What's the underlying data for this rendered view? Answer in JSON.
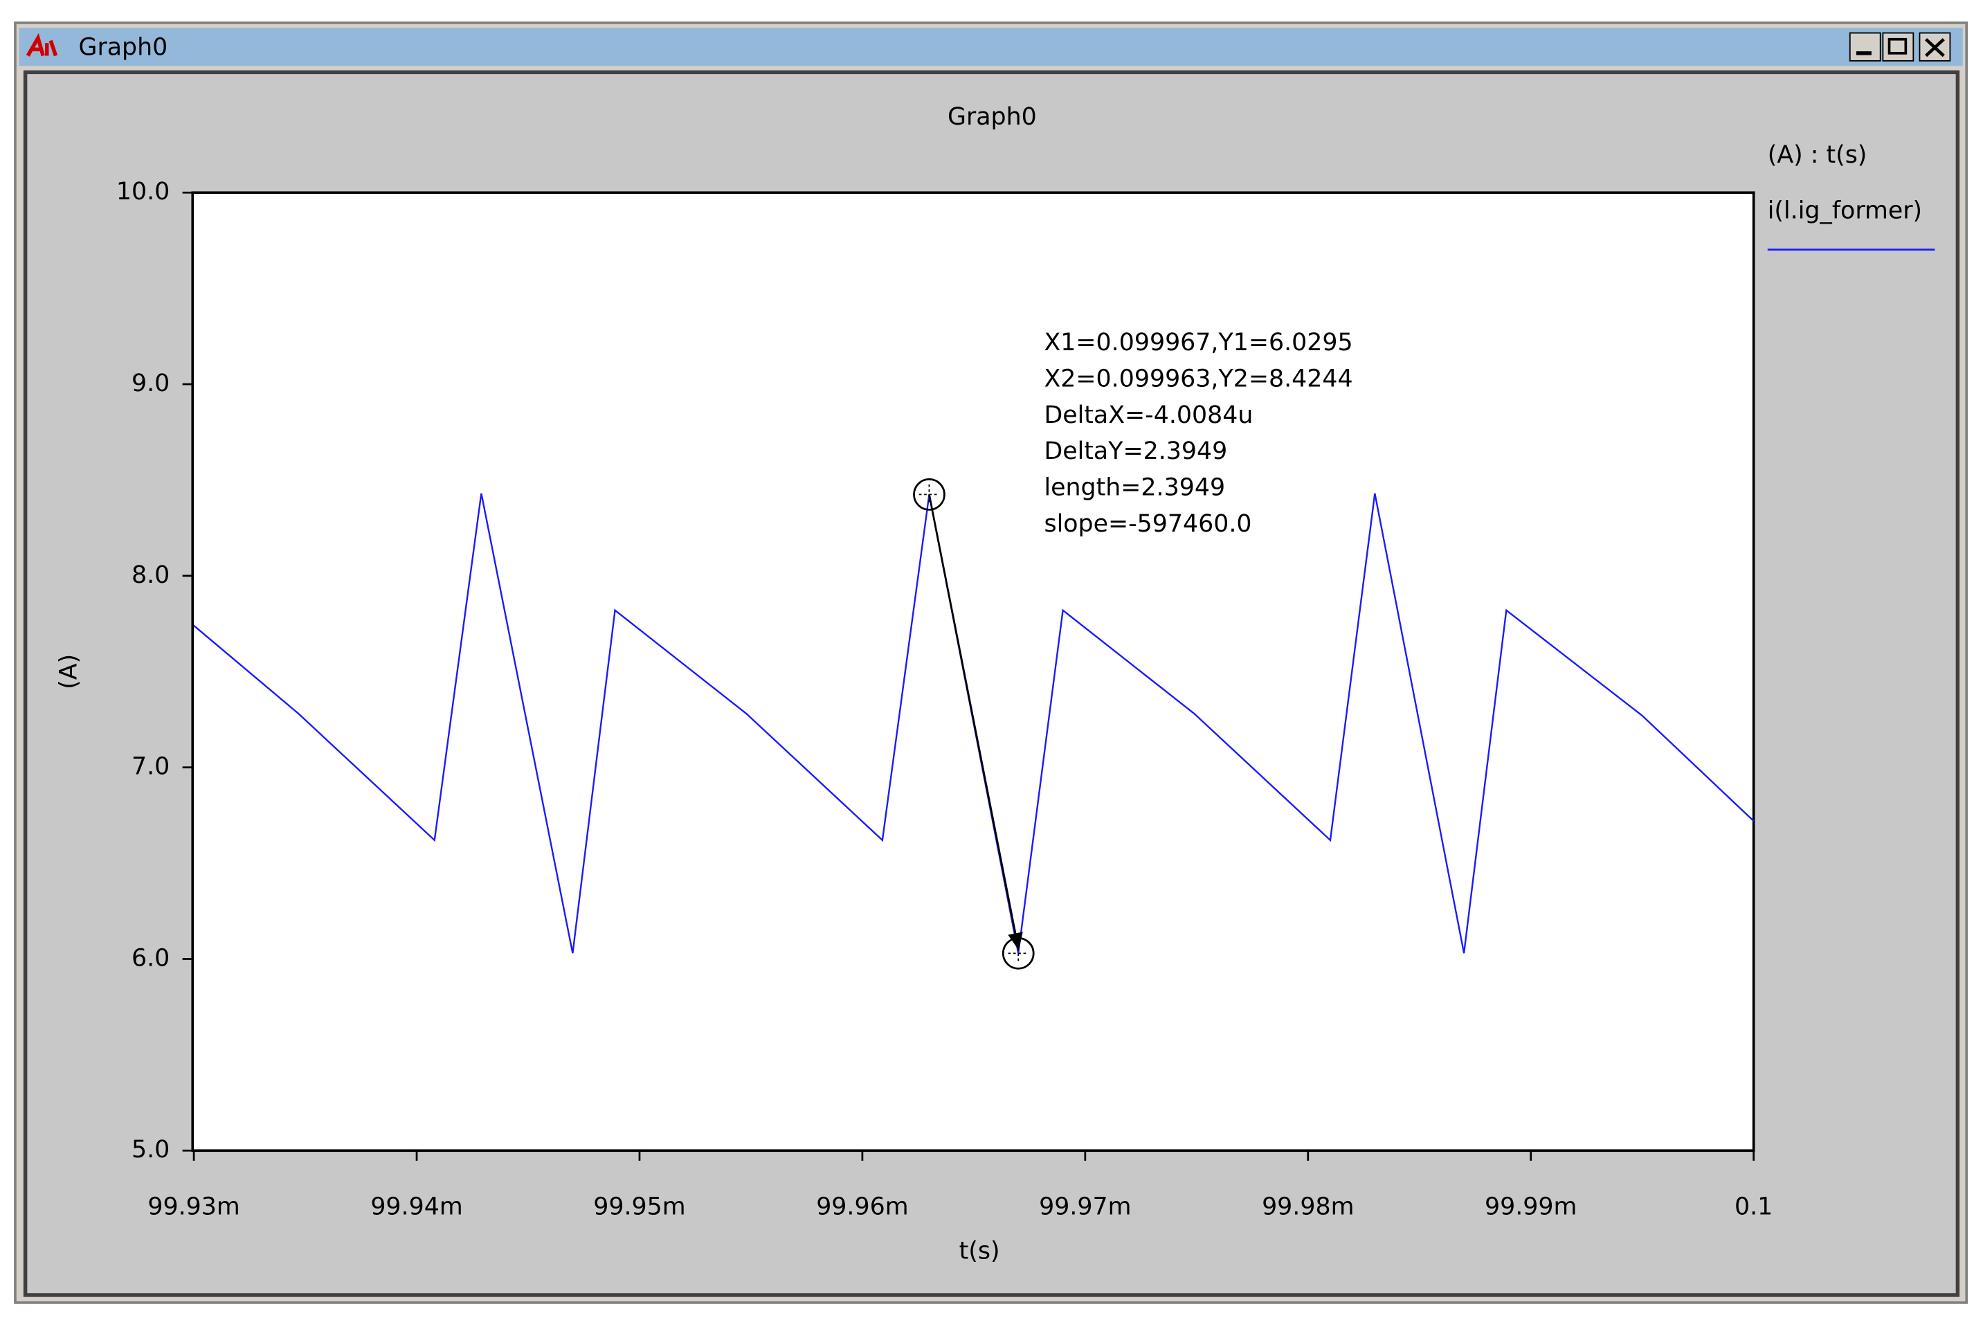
{
  "window": {
    "title": "Graph0"
  },
  "chart_data": {
    "type": "line",
    "title": "Graph0",
    "x_label": "t(s)",
    "y_label": "(A)",
    "legend_title": "(A) : t(s)",
    "x": [
      0.09993,
      0.0999347,
      0.0999408,
      0.0999429,
      0.099947,
      0.0999489,
      0.0999548,
      0.0999609,
      0.099963,
      0.099967,
      0.099969,
      0.0999749,
      0.099981,
      0.099983,
      0.099987,
      0.0999889,
      0.099995,
      0.1
    ],
    "series": [
      {
        "name": "i(l.ig_former)",
        "color": "#1a1aff",
        "values": [
          7.74,
          7.28,
          6.62,
          8.43,
          6.03,
          7.82,
          7.28,
          6.62,
          8.4244,
          6.0295,
          7.82,
          7.28,
          6.62,
          8.43,
          6.03,
          7.82,
          7.27,
          6.72
        ]
      }
    ],
    "xlim": [
      0.09993,
      0.1
    ],
    "xticks": [
      {
        "value": 0.09993,
        "label": "99.93m"
      },
      {
        "value": 0.09994,
        "label": "99.94m"
      },
      {
        "value": 0.09995,
        "label": "99.95m"
      },
      {
        "value": 0.09996,
        "label": "99.96m"
      },
      {
        "value": 0.09997,
        "label": "99.97m"
      },
      {
        "value": 0.09998,
        "label": "99.98m"
      },
      {
        "value": 0.09999,
        "label": "99.99m"
      },
      0.1
    ],
    "ylim": [
      5,
      10
    ],
    "yticks": [
      {
        "value": 5,
        "label": "5.0"
      },
      {
        "value": 6,
        "label": "6.0"
      },
      {
        "value": 7,
        "label": "7.0"
      },
      {
        "value": 8,
        "label": "8.0"
      },
      {
        "value": 9,
        "label": "9.0"
      },
      {
        "value": 10,
        "label": "10.0"
      }
    ],
    "grid": false,
    "annotations": [
      "X1=0.099967,Y1=6.0295",
      "X2=0.099963,Y2=8.4244",
      "DeltaX=-4.0084u",
      "DeltaY=2.3949",
      "length=2.3949",
      "slope=-597460.0"
    ]
  }
}
